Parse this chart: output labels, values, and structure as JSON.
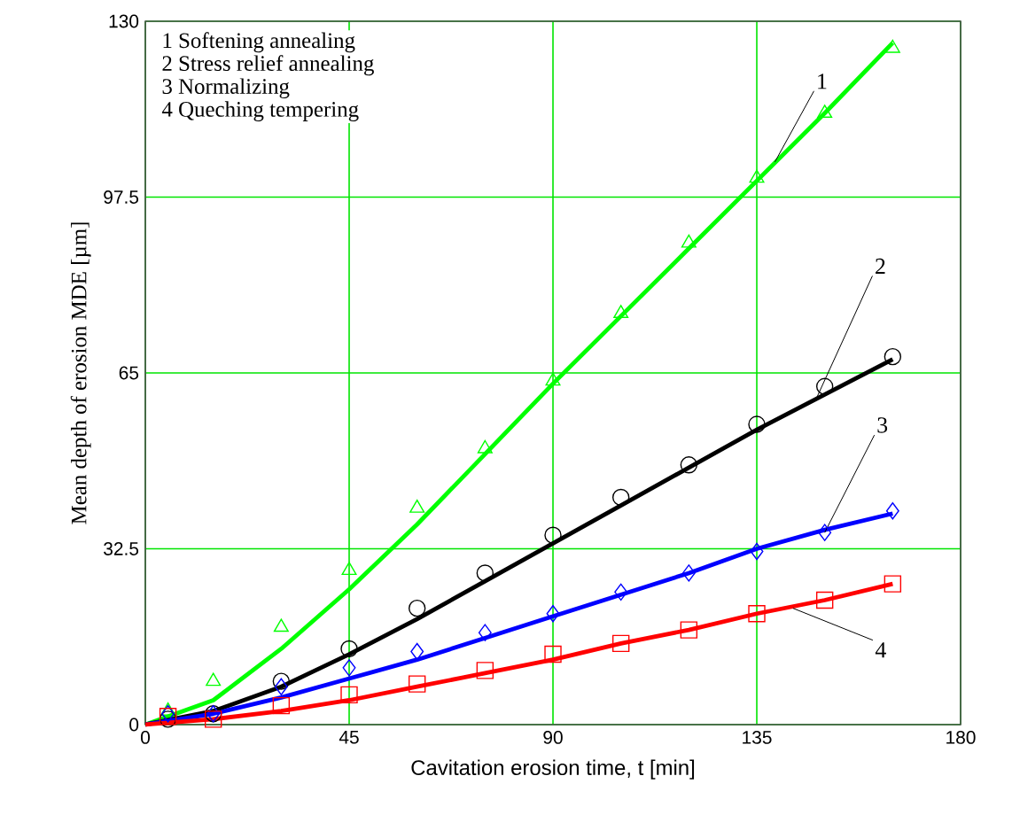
{
  "chart_data": {
    "type": "line",
    "xlabel": "Cavitation erosion time, t [min]",
    "ylabel": "Mean depth of erosion MDE [µm]",
    "xlim": [
      0,
      180
    ],
    "xticks": [
      0,
      45,
      90,
      135,
      180
    ],
    "ylim": [
      0,
      130
    ],
    "yticks": [
      0,
      32.5,
      65,
      97.5,
      130
    ],
    "grid": true,
    "series": [
      {
        "type": "scatter",
        "marker": "triangle",
        "color": "#00ff00",
        "x": [
          5,
          15,
          30,
          45,
          60,
          75,
          90,
          105,
          120,
          135,
          150,
          165
        ],
        "values": [
          2.5,
          8,
          18,
          28.5,
          40,
          51,
          63.5,
          76,
          89,
          101,
          113,
          125
        ]
      },
      {
        "color": "#00ff00",
        "x": [
          0,
          15,
          30,
          45,
          60,
          75,
          90,
          105,
          120,
          135,
          150,
          165
        ],
        "values": [
          0,
          4.5,
          14,
          25,
          37,
          50,
          63,
          75.5,
          88,
          100.5,
          113,
          126
        ]
      },
      {
        "type": "scatter",
        "marker": "circle",
        "color": "#000000",
        "x": [
          5,
          15,
          30,
          45,
          60,
          75,
          90,
          105,
          120,
          135,
          150,
          165
        ],
        "values": [
          1,
          2,
          8,
          14,
          21.5,
          28,
          35,
          42,
          48,
          55.5,
          62.5,
          68
        ]
      },
      {
        "color": "#000000",
        "x": [
          0,
          15,
          30,
          45,
          60,
          75,
          90,
          105,
          120,
          135,
          150,
          165
        ],
        "values": [
          0,
          2.5,
          7,
          13,
          19.5,
          26.5,
          33.5,
          40.5,
          47.5,
          54.5,
          61,
          67.5
        ]
      },
      {
        "type": "scatter",
        "marker": "diamond",
        "color": "#0000ff",
        "x": [
          5,
          15,
          30,
          45,
          60,
          75,
          90,
          105,
          120,
          135,
          150,
          165
        ],
        "values": [
          2,
          2,
          7,
          10.5,
          13.5,
          17,
          20.5,
          24.5,
          28,
          32,
          35.5,
          39.5
        ]
      },
      {
        "color": "#0000ff",
        "x": [
          0,
          15,
          30,
          45,
          60,
          75,
          90,
          105,
          120,
          135,
          150,
          165
        ],
        "values": [
          0,
          2,
          5,
          8.5,
          12,
          16,
          20,
          24,
          28,
          32.5,
          36,
          39
        ]
      },
      {
        "type": "scatter",
        "marker": "square",
        "color": "#ff0000",
        "x": [
          5,
          15,
          30,
          45,
          60,
          75,
          90,
          105,
          120,
          135,
          150,
          165
        ],
        "values": [
          1.5,
          1,
          3.5,
          5.5,
          7.5,
          10,
          13,
          15,
          17.5,
          20.5,
          23,
          26
        ]
      },
      {
        "color": "#ff0000",
        "x": [
          0,
          15,
          30,
          45,
          60,
          75,
          90,
          105,
          120,
          135,
          150,
          165
        ],
        "values": [
          0,
          1,
          2.5,
          4.5,
          7,
          9.5,
          12,
          15,
          17.5,
          20.5,
          23,
          26
        ]
      }
    ],
    "annotations": [
      "1 Softening annealing",
      "2 Stress relief annealing",
      "3 Normalizing",
      "4 Queching tempering",
      {
        "text": "1",
        "x": 139,
        "y": 104
      },
      {
        "text": "2",
        "x": 148,
        "y": 60
      },
      {
        "text": "3",
        "x": 150,
        "y": 35.5
      },
      {
        "text": "4",
        "x": 143,
        "y": 21.5
      }
    ]
  }
}
